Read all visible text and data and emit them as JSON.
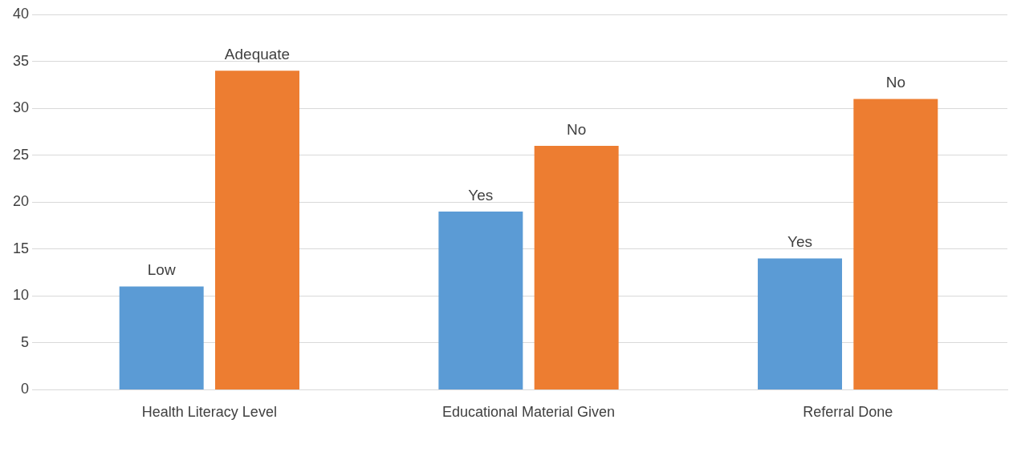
{
  "chart_data": {
    "type": "bar",
    "categories": [
      "Health Literacy Level",
      "Educational Material Given",
      "Referral Done"
    ],
    "series": [
      {
        "color": "#5b9bd5",
        "values": [
          11,
          19,
          14
        ],
        "value_labels": [
          "Low",
          "Yes",
          "Yes"
        ]
      },
      {
        "color": "#ed7d31",
        "values": [
          34,
          26,
          31
        ],
        "value_labels": [
          "Adequate",
          "No",
          "No"
        ]
      }
    ],
    "ylim": [
      0,
      40
    ],
    "yticks": [
      0,
      5,
      10,
      15,
      20,
      25,
      30,
      35,
      40
    ],
    "grid": "y",
    "legend": false
  }
}
